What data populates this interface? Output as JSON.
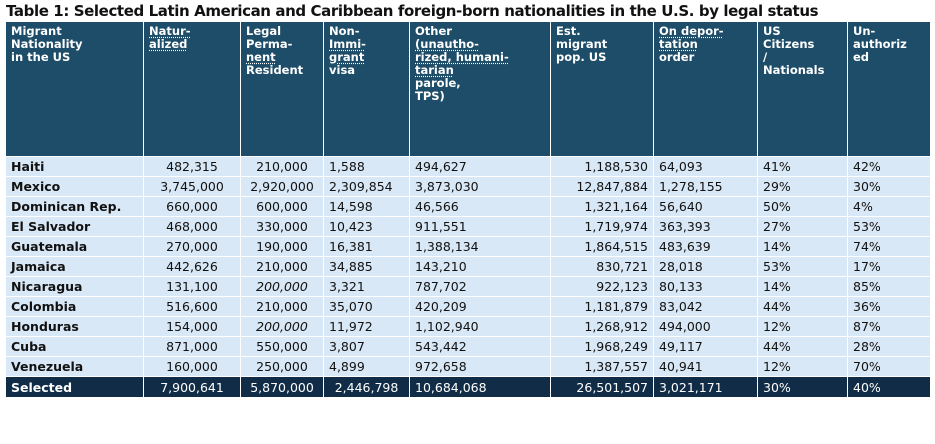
{
  "title": "Table 1: Selected Latin American and Caribbean foreign-born nationalities in the U.S. by legal status",
  "headers": [
    [
      "Migrant",
      "Nationality",
      "in the US"
    ],
    [
      "Natur-",
      "alized"
    ],
    [
      "Legal",
      "Perma-",
      "nent",
      "Resident"
    ],
    [
      "Non-",
      "Immi-",
      "grant",
      "visa"
    ],
    [
      "Other",
      "(unautho-",
      "rized, humani-",
      "tarian",
      "parole,",
      "TPS)"
    ],
    [
      "Est.",
      "migrant",
      "pop. US"
    ],
    [
      "On depor-",
      "tation",
      "order"
    ],
    [
      "US",
      "Citizens",
      "/",
      "Nationals"
    ],
    [
      "Un-",
      "authoriz",
      "ed"
    ]
  ],
  "rows": [
    {
      "name": "Haiti",
      "naturalized": "482,315",
      "lpr": "210,000",
      "nonimmigrant": "1,588",
      "other": "494,627",
      "population": "1,188,530",
      "deportation": "64,093",
      "citizens": "41%",
      "unauthorized": "42%"
    },
    {
      "name": "Mexico",
      "naturalized": "3,745,000",
      "lpr": "2,920,000",
      "nonimmigrant": "2,309,854",
      "other": "3,873,030",
      "population": "12,847,884",
      "deportation": "1,278,155",
      "citizens": "29%",
      "unauthorized": "30%"
    },
    {
      "name": "Dominican Rep.",
      "naturalized": "660,000",
      "lpr": "600,000",
      "nonimmigrant": "14,598",
      "other": "46,566",
      "population": "1,321,164",
      "deportation": "56,640",
      "citizens": "50%",
      "unauthorized": "4%"
    },
    {
      "name": "El Salvador",
      "naturalized": "468,000",
      "lpr": "330,000",
      "nonimmigrant": "10,423",
      "other": "911,551",
      "population": "1,719,974",
      "deportation": "363,393",
      "citizens": "27%",
      "unauthorized": "53%"
    },
    {
      "name": "Guatemala",
      "naturalized": "270,000",
      "lpr": "190,000",
      "nonimmigrant": "16,381",
      "other": "1,388,134",
      "population": "1,864,515",
      "deportation": "483,639",
      "citizens": "14%",
      "unauthorized": "74%"
    },
    {
      "name": "Jamaica",
      "naturalized": "442,626",
      "lpr": "210,000",
      "nonimmigrant": "34,885",
      "other": "143,210",
      "population": "830,721",
      "deportation": "28,018",
      "citizens": "53%",
      "unauthorized": "17%"
    },
    {
      "name": "Nicaragua",
      "naturalized": "131,100",
      "lpr": "200,000",
      "lpr_italic": true,
      "nonimmigrant": "3,321",
      "other": "787,702",
      "population": "922,123",
      "deportation": "80,133",
      "citizens": "14%",
      "unauthorized": "85%"
    },
    {
      "name": "Colombia",
      "naturalized": "516,600",
      "lpr": "210,000",
      "nonimmigrant": "35,070",
      "other": "420,209",
      "population": "1,181,879",
      "deportation": "83,042",
      "citizens": "44%",
      "unauthorized": "36%"
    },
    {
      "name": "Honduras",
      "naturalized": "154,000",
      "lpr": "200,000",
      "lpr_italic": true,
      "nonimmigrant": "11,972",
      "other": "1,102,940",
      "population": "1,268,912",
      "deportation": "494,000",
      "citizens": "12%",
      "unauthorized": "87%"
    },
    {
      "name": "Cuba",
      "naturalized": "871,000",
      "lpr": "550,000",
      "nonimmigrant": "3,807",
      "other": "543,442",
      "population": "1,968,249",
      "deportation": "49,117",
      "citizens": "44%",
      "unauthorized": "28%"
    },
    {
      "name": "Venezuela",
      "naturalized": "160,000",
      "lpr": "250,000",
      "nonimmigrant": "4,899",
      "other": "972,658",
      "population": "1,387,557",
      "deportation": "40,941",
      "citizens": "12%",
      "unauthorized": "70%"
    }
  ],
  "total": {
    "name": "Selected",
    "naturalized": "7,900,641",
    "lpr": "5,870,000",
    "nonimmigrant": "2,446,798",
    "other": "10,684,068",
    "population": "26,501,507",
    "deportation": "3,021,171",
    "citizens": "30%",
    "unauthorized": "40%"
  },
  "colors": {
    "header_bg": "#1e4d69",
    "row_bg": "#d9e8f6",
    "total_bg": "#102c46"
  }
}
